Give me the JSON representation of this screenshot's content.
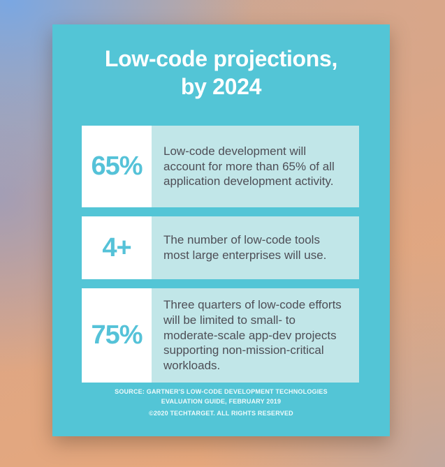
{
  "title": {
    "line1": "Low-code projections,",
    "line2": "by 2024"
  },
  "stats": [
    {
      "value": "65%",
      "description": "Low-code development will account for more than 65% of all application development activity."
    },
    {
      "value": "4+",
      "description": "The number of low-code tools most large enterprises will use."
    },
    {
      "value": "75%",
      "description": "Three quarters of low-code efforts will be limited to small- to moderate-scale app-dev projects supporting non-mission-critical workloads."
    }
  ],
  "footer": {
    "source_line1": "SOURCE: GARTNER'S LOW-CODE DEVELOPMENT TECHNOLOGIES",
    "source_line2": "EVALUATION GUIDE, FEBRUARY 2019",
    "copyright": "©2020 TECHTARGET. ALL RIGHTS RESERVED"
  },
  "colors": {
    "card_teal": "#53c5d6",
    "light_teal_box": "#c1e6e8",
    "stat_teal": "#55c2d8",
    "body_text": "#4e4e56",
    "title_text": "#ffffff",
    "bg_blue": "#7aa7e2",
    "bg_peach": "#dba587",
    "bg_orange": "#e8a87a",
    "bg_mauve": "#c0a8a0"
  },
  "chart_data": {
    "type": "table",
    "title": "Low-code projections, by 2024",
    "categories": [
      "Low-code development will account for more than 65% of all application development activity.",
      "The number of low-code tools most large enterprises will use.",
      "Three quarters of low-code efforts will be limited to small- to moderate-scale app-dev projects supporting non-mission-critical workloads."
    ],
    "values": [
      "65%",
      "4+",
      "75%"
    ],
    "source": "SOURCE: GARTNER'S LOW-CODE DEVELOPMENT TECHNOLOGIES EVALUATION GUIDE, FEBRUARY 2019 ©2020 TECHTARGET. ALL RIGHTS RESERVED",
    "legend_position": "none",
    "grid": false
  }
}
